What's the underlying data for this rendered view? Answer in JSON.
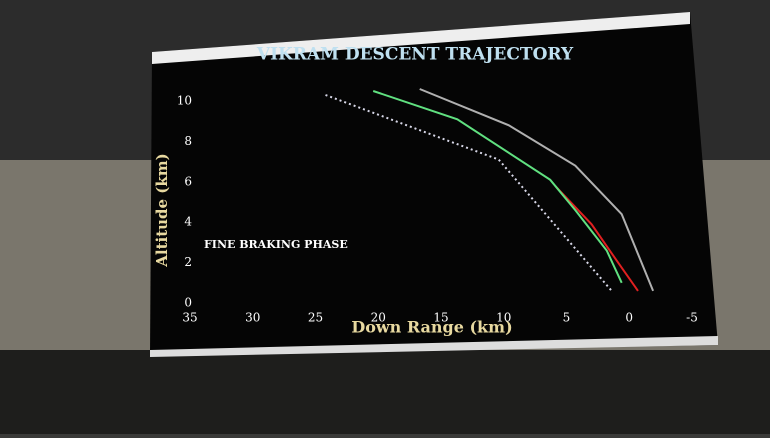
{
  "chart_data": {
    "type": "line",
    "title": "VIKRAM DESCENT TRAJECTORY",
    "x_label": "Down Range (km)",
    "y_label": "Altitude (km)",
    "annotation": "FINE BRAKING PHASE",
    "xlim": [
      35,
      -5
    ],
    "xticks": [
      35,
      30,
      25,
      20,
      15,
      10,
      5,
      0,
      -5
    ],
    "ylim": [
      0,
      10.5
    ],
    "yticks": [
      0,
      2,
      4,
      6,
      8,
      10
    ],
    "series": [
      {
        "color": "#d8d8e8",
        "style": "dotted",
        "x": [
          24.2,
          10.4,
          1.4
        ],
        "values": [
          10.3,
          7.1,
          0.6
        ]
      },
      {
        "color": "#b0b0b0",
        "style": "solid",
        "x": [
          16.7,
          9.6,
          4.3,
          0.6,
          -1.9
        ],
        "values": [
          10.6,
          8.8,
          6.8,
          4.4,
          0.6
        ]
      },
      {
        "color": "#e02020",
        "style": "solid",
        "x": [
          5.9,
          3.0,
          1.0,
          -0.7
        ],
        "values": [
          5.8,
          3.9,
          2.1,
          0.6
        ]
      },
      {
        "color": "#60e080",
        "style": "solid",
        "x": [
          20.4,
          13.7,
          6.3,
          4.3,
          1.8,
          0.6
        ],
        "values": [
          10.5,
          9.1,
          6.1,
          4.6,
          2.6,
          1.0
        ]
      }
    ]
  }
}
